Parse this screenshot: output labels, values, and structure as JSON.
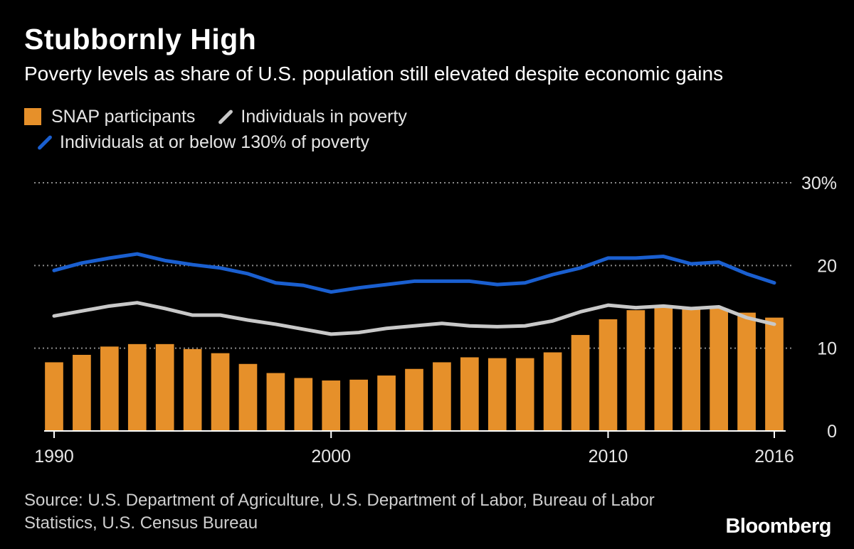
{
  "title": "Stubbornly High",
  "subtitle": "Poverty levels as share of U.S. population still elevated despite economic gains",
  "legend": {
    "snap": "SNAP participants",
    "poverty": "Individuals in poverty",
    "below130": "Individuals at or below 130% of poverty"
  },
  "source": "Source: U.S. Department of Agriculture, U.S. Department of Labor, Bureau of Labor Statistics, U.S. Census Bureau",
  "brand": "Bloomberg",
  "colors": {
    "bar": "#e6902a",
    "poverty": "#c8c8c8",
    "below130": "#1a5fd0",
    "grid": "#8a8a8a",
    "axis": "#ffffff"
  },
  "chart_data": {
    "type": "bar",
    "x": [
      1990,
      1991,
      1992,
      1993,
      1994,
      1995,
      1996,
      1997,
      1998,
      1999,
      2000,
      2001,
      2002,
      2003,
      2004,
      2005,
      2006,
      2007,
      2008,
      2009,
      2010,
      2011,
      2012,
      2013,
      2014,
      2015,
      2016
    ],
    "x_tick_labels": [
      "1990",
      "2000",
      "2010",
      "2016"
    ],
    "x_ticks": [
      1990,
      2000,
      2010,
      2016
    ],
    "y_tick_labels": [
      "30%",
      "20",
      "10",
      "0"
    ],
    "y_ticks": [
      30,
      20,
      10,
      0
    ],
    "ylim": [
      0,
      30
    ],
    "grid": true,
    "series": [
      {
        "name": "SNAP participants",
        "type": "bar",
        "values": [
          8.3,
          9.2,
          10.2,
          10.5,
          10.5,
          9.9,
          9.4,
          8.1,
          7.0,
          6.4,
          6.1,
          6.2,
          6.7,
          7.5,
          8.3,
          8.9,
          8.8,
          8.8,
          9.5,
          11.6,
          13.5,
          14.6,
          15.0,
          14.7,
          14.8,
          14.3,
          13.7
        ]
      },
      {
        "name": "Individuals in poverty",
        "type": "line",
        "values": [
          13.9,
          14.5,
          15.1,
          15.5,
          14.8,
          14.0,
          14.0,
          13.4,
          12.9,
          12.3,
          11.7,
          11.9,
          12.4,
          12.7,
          13.0,
          12.7,
          12.6,
          12.7,
          13.3,
          14.4,
          15.2,
          14.9,
          15.1,
          14.8,
          15.0,
          13.7,
          12.9
        ]
      },
      {
        "name": "Individuals at or below 130% of poverty",
        "type": "line",
        "values": [
          19.4,
          20.3,
          20.9,
          21.4,
          20.6,
          20.1,
          19.7,
          19.0,
          17.9,
          17.6,
          16.8,
          17.3,
          17.7,
          18.1,
          18.1,
          18.1,
          17.7,
          17.9,
          18.9,
          19.7,
          20.9,
          20.9,
          21.1,
          20.2,
          20.4,
          19.0,
          17.9
        ]
      }
    ]
  }
}
